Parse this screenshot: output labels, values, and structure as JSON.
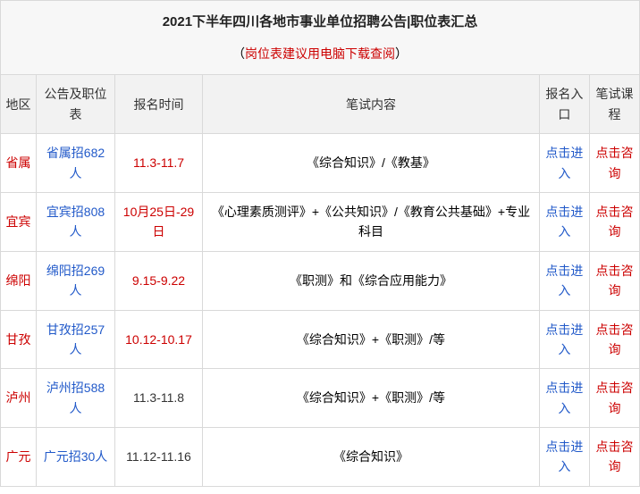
{
  "title": "2021下半年四川各地市事业单位招聘公告|职位表汇总",
  "subtitle_prefix": "（",
  "subtitle_red": "岗位表建议用电脑下载查阅",
  "subtitle_suffix": "）",
  "headers": {
    "region": "地区",
    "announcement": "公告及职位表",
    "time": "报名时间",
    "exam": "笔试内容",
    "entry": "报名入口",
    "course": "笔试课程"
  },
  "rows": [
    {
      "region": "省属",
      "region_color": "red-text",
      "announcement": "省属招682人",
      "time": "11.3-11.7",
      "time_color": "red-text",
      "exam": "《综合知识》/《教基》",
      "entry": "点击进入",
      "course": "点击咨询"
    },
    {
      "region": "宜宾",
      "region_color": "red-text",
      "announcement": "宜宾招808人",
      "time": "10月25日-29日",
      "time_color": "red-text",
      "exam": "《心理素质测评》+《公共知识》/《教育公共基础》+专业科目",
      "entry": "点击进入",
      "course": "点击咨询"
    },
    {
      "region": "绵阳",
      "region_color": "red-text",
      "announcement": "绵阳招269人",
      "time": "9.15-9.22",
      "time_color": "red-text",
      "exam": "《职测》和《综合应用能力》",
      "entry": "点击进入",
      "course": "点击咨询"
    },
    {
      "region": "甘孜",
      "region_color": "red-text",
      "announcement": "甘孜招257人",
      "time": "10.12-10.17",
      "time_color": "red-text",
      "exam": "《综合知识》+《职测》/等",
      "entry": "点击进入",
      "course": "点击咨询"
    },
    {
      "region": "泸州",
      "region_color": "red-text",
      "announcement": "泸州招588人",
      "time": "11.3-11.8",
      "time_color": "black-text",
      "exam": "《综合知识》+《职测》/等",
      "entry": "点击进入",
      "course": "点击咨询"
    },
    {
      "region": "广元",
      "region_color": "red-text",
      "announcement": "广元招30人",
      "time": "11.12-11.16",
      "time_color": "black-text",
      "exam": "《综合知识》",
      "entry": "点击进入",
      "course": "点击咨询"
    }
  ],
  "columns": {
    "widths": {
      "region": 40,
      "ann": 88,
      "time": 98,
      "entry": 56,
      "course": 56
    }
  },
  "colors": {
    "link_blue": "#2159c9",
    "red": "#c00",
    "border": "#d9d9d9",
    "header_bg": "#f2f2f2",
    "title_bg": "#f7f7f7"
  }
}
